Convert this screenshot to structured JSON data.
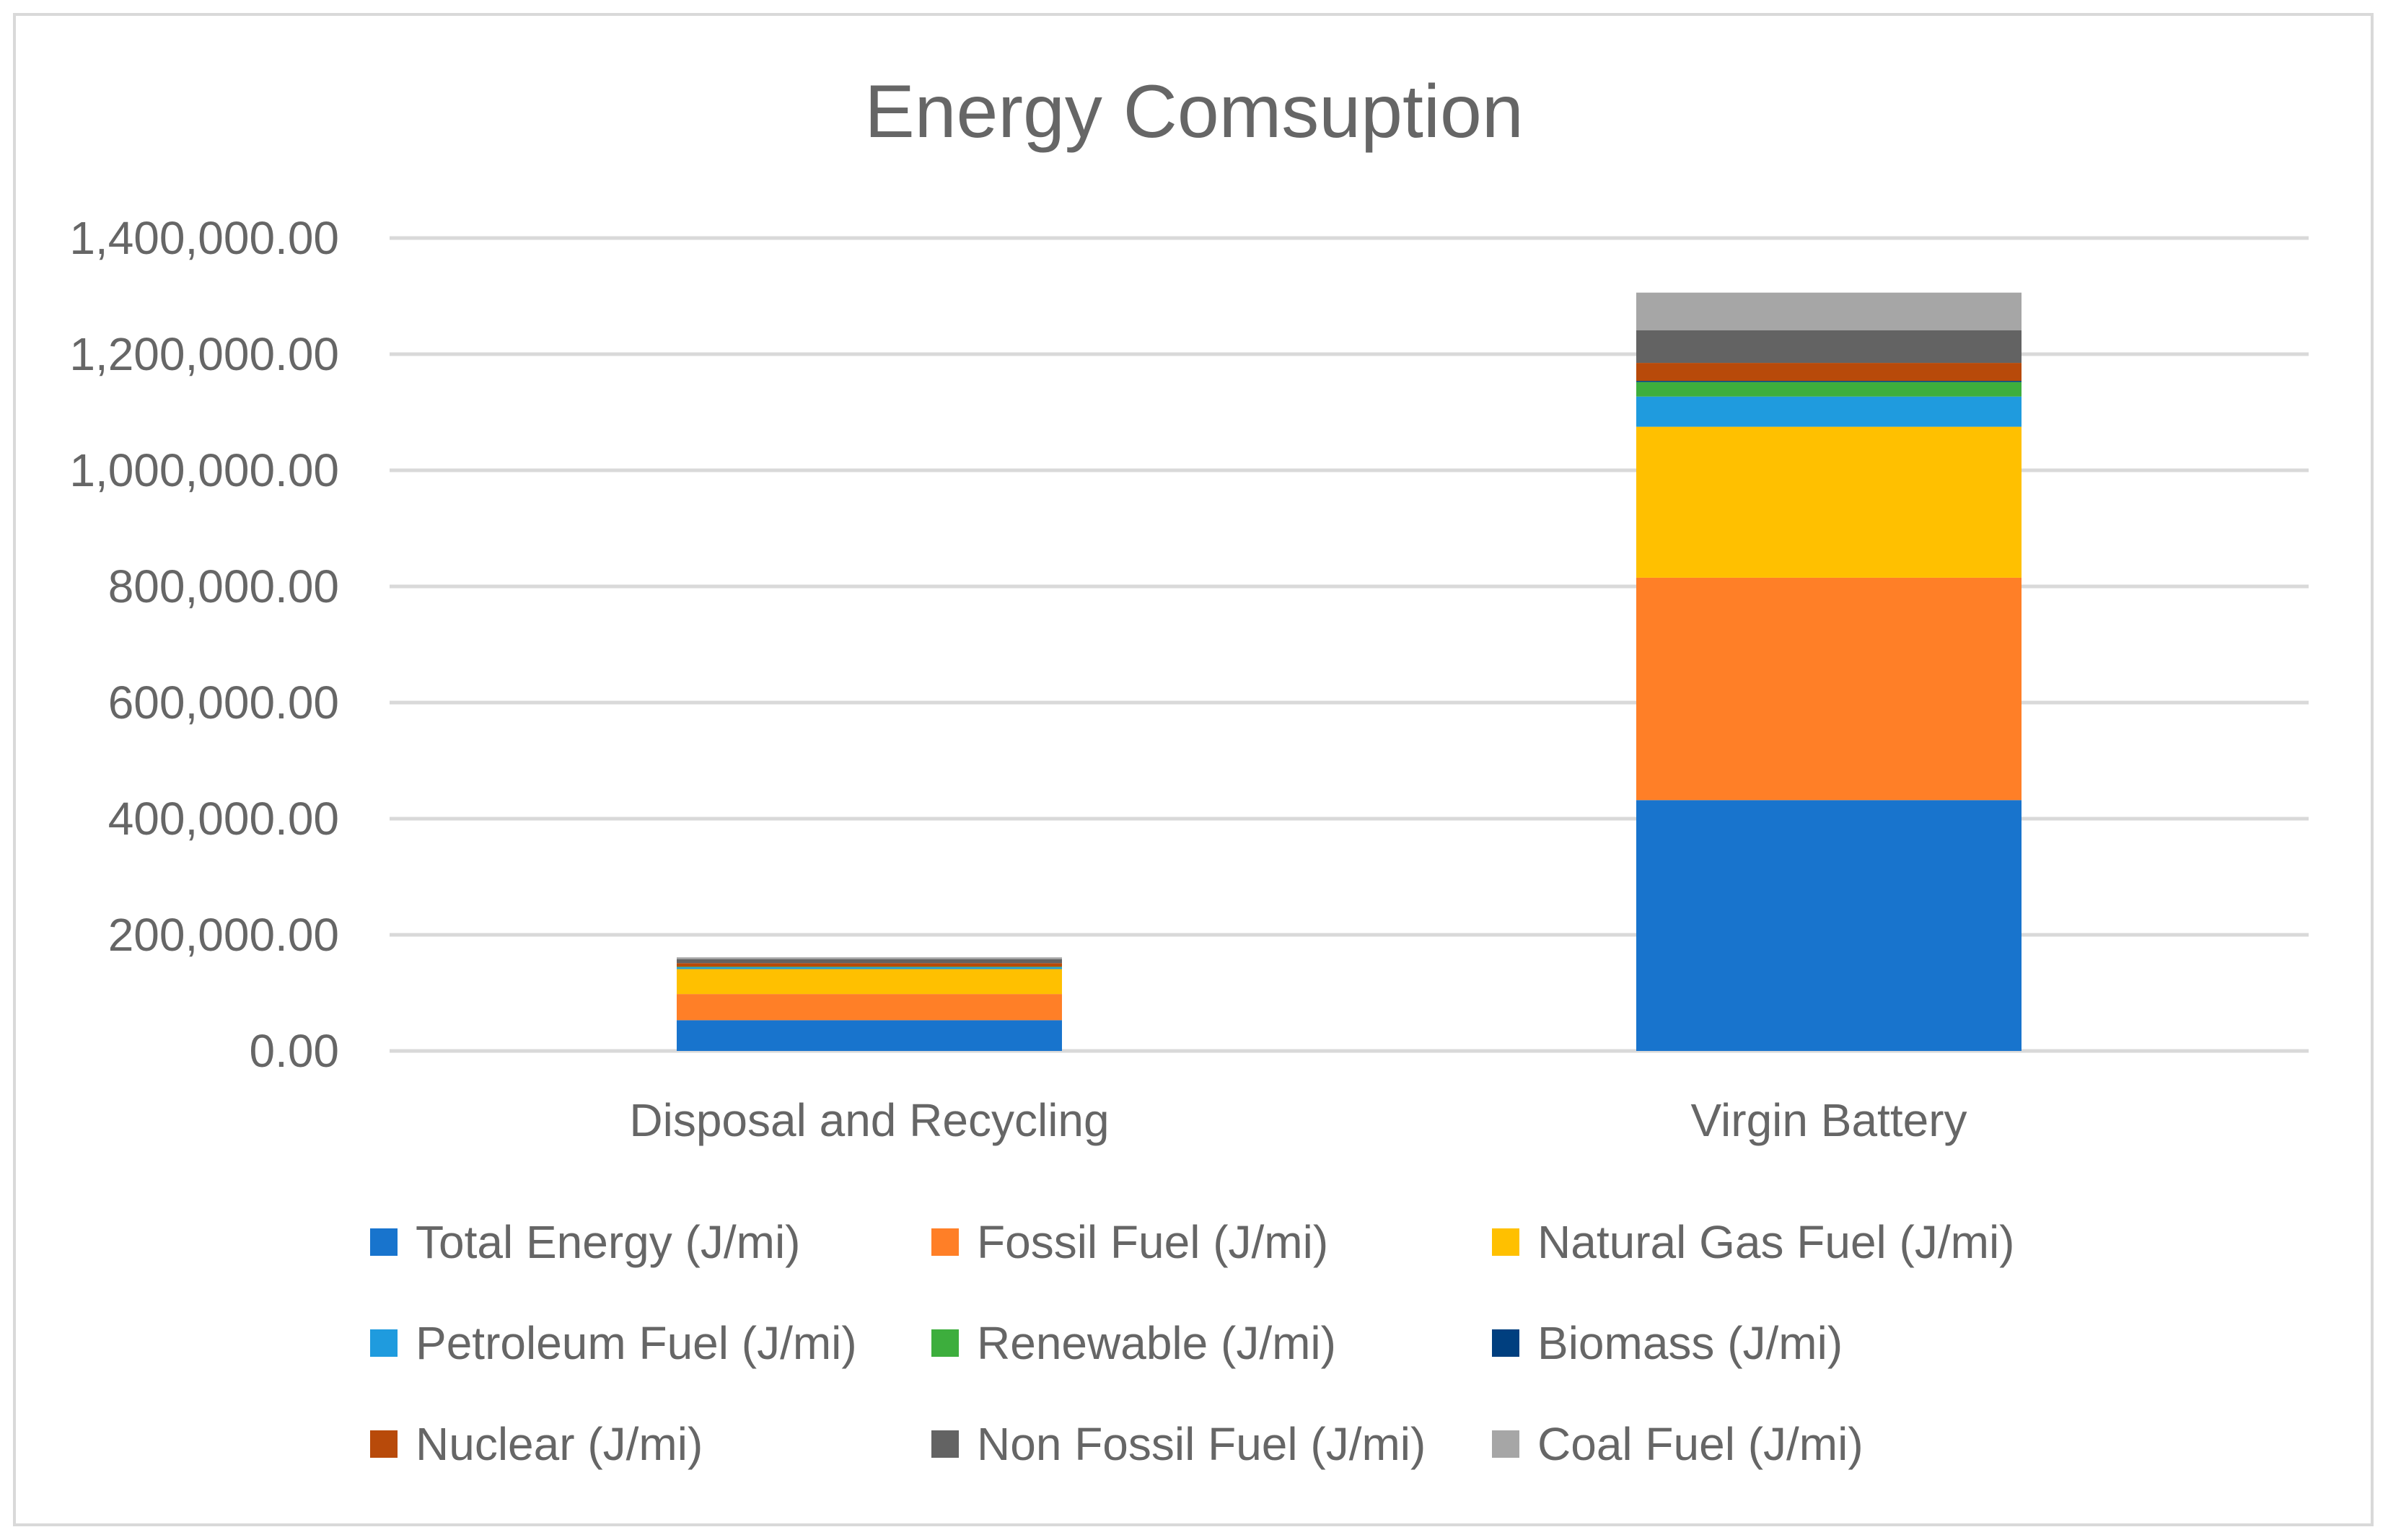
{
  "chart_data": {
    "type": "bar",
    "stacked": true,
    "title": "Energy Comsuption",
    "xlabel": "",
    "ylabel": "",
    "ylim": [
      0,
      1400000
    ],
    "yticks": [
      0,
      200000,
      400000,
      600000,
      800000,
      1000000,
      1200000,
      1400000
    ],
    "ytick_labels": [
      "0.00",
      "200,000.00",
      "400,000.00",
      "600,000.00",
      "800,000.00",
      "1,000,000.00",
      "1,200,000.00",
      "1,400,000.00"
    ],
    "grid": true,
    "legend_position": "bottom",
    "categories": [
      "Disposal and Recycling",
      "Virgin Battery"
    ],
    "series": [
      {
        "name": "Total Energy (J/mi)",
        "color": "#1874CD",
        "values": [
          53000,
          432000
        ]
      },
      {
        "name": "Fossil Fuel (J/mi)",
        "color": "#FF7F27",
        "values": [
          45000,
          383000
        ]
      },
      {
        "name": "Natural Gas Fuel (J/mi)",
        "color": "#FFC000",
        "values": [
          43000,
          260000
        ]
      },
      {
        "name": "Petroleum Fuel (J/mi)",
        "color": "#1F9BDE",
        "values": [
          3000,
          52000
        ]
      },
      {
        "name": "Renewable (J/mi)",
        "color": "#3DAE3D",
        "values": [
          1000,
          25000
        ]
      },
      {
        "name": "Biomass (J/mi)",
        "color": "#003F7F",
        "values": [
          200,
          2000
        ]
      },
      {
        "name": "Nuclear (J/mi)",
        "color": "#B84A0A",
        "values": [
          6000,
          31000
        ]
      },
      {
        "name": "Non Fossil Fuel (J/mi)",
        "color": "#636363",
        "values": [
          7000,
          56000
        ]
      },
      {
        "name": "Coal Fuel (J/mi)",
        "color": "#A6A6A6",
        "values": [
          3000,
          65000
        ]
      }
    ]
  }
}
